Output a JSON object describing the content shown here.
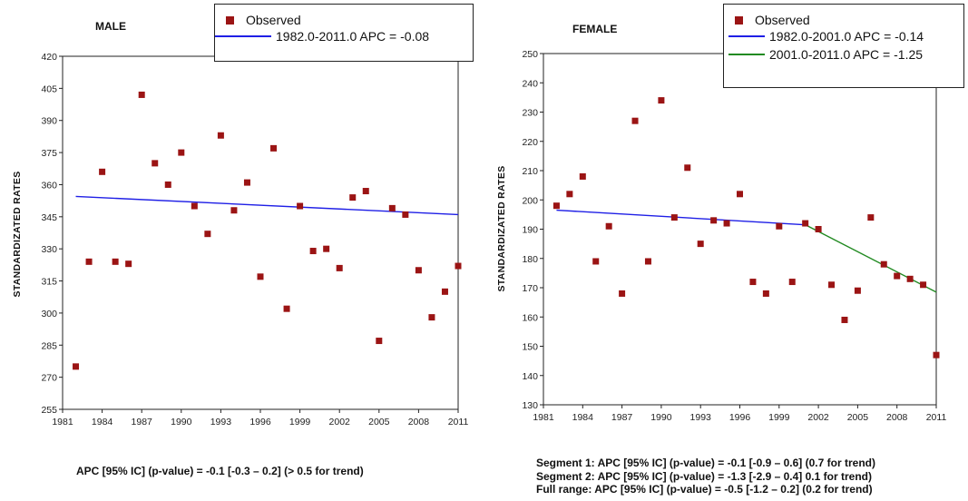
{
  "colors": {
    "observed": "#9B1414",
    "segment1": "#1F1FE6",
    "segment2": "#218A21",
    "axis": "#222222"
  },
  "charts": {
    "male": {
      "sex_title": "MALE",
      "ylabel": "STANDARDIZATED RATES",
      "legend": {
        "observed": "Observed",
        "seg1": "1982.0-2011.0 APC  = -0.08"
      },
      "note": [
        "APC [95% IC] (p-value) = -0.1 [-0.3 – 0.2] (> 0.5 for trend)"
      ]
    },
    "female": {
      "sex_title": "FEMALE",
      "ylabel": "STANDARDIZATED RATES",
      "legend": {
        "observed": "Observed",
        "seg1": "1982.0-2001.0 APC  = -0.14",
        "seg2": "2001.0-2011.0 APC  = -1.25"
      },
      "note": [
        "Segment 1: APC  [95% IC] (p-value) = -0.1 [-0.9 – 0.6] (0.7 for trend)",
        "Segment 2: APC  [95% IC] (p-value) = -1.3 [-2.9 – 0.4] 0.1 for trend)",
        "Full range:  APC  [95% IC] (p-value) = -0.5 [-1.2 – 0.2] (0.2 for trend)"
      ]
    }
  },
  "chart_data": [
    {
      "type": "scatter",
      "title": "MALE",
      "xlabel": "",
      "ylabel": "STANDARDIZATED RATES",
      "xlim": [
        1981,
        2011
      ],
      "ylim": [
        255,
        420
      ],
      "xticks": [
        1981,
        1984,
        1987,
        1990,
        1993,
        1996,
        1999,
        2002,
        2005,
        2008,
        2011
      ],
      "yticks": [
        255,
        270,
        285,
        300,
        315,
        330,
        345,
        360,
        375,
        390,
        405,
        420
      ],
      "legend_position": "top-right",
      "grid": false,
      "series": [
        {
          "name": "Observed",
          "kind": "points",
          "x": [
            1982,
            1983,
            1984,
            1985,
            1986,
            1987,
            1988,
            1989,
            1990,
            1991,
            1992,
            1993,
            1994,
            1995,
            1996,
            1997,
            1998,
            1999,
            2000,
            2001,
            2002,
            2003,
            2004,
            2005,
            2006,
            2007,
            2008,
            2009,
            2010,
            2011
          ],
          "y": [
            275,
            324,
            366,
            324,
            323,
            402,
            370,
            360,
            375,
            350,
            337,
            383,
            348,
            361,
            317,
            377,
            302,
            350,
            329,
            330,
            321,
            354,
            357,
            287,
            349,
            346,
            320,
            298,
            310,
            322
          ]
        },
        {
          "name": "1982.0-2011.0 APC  = -0.08",
          "kind": "line",
          "x": [
            1982,
            2011
          ],
          "y": [
            354.5,
            346
          ]
        }
      ]
    },
    {
      "type": "scatter",
      "title": "FEMALE",
      "xlabel": "",
      "ylabel": "STANDARDIZATED RATES",
      "xlim": [
        1981,
        2011
      ],
      "ylim": [
        130,
        250
      ],
      "xticks": [
        1981,
        1984,
        1987,
        1990,
        1993,
        1996,
        1999,
        2002,
        2005,
        2008,
        2011
      ],
      "yticks": [
        130,
        140,
        150,
        160,
        170,
        180,
        190,
        200,
        210,
        220,
        230,
        240,
        250
      ],
      "legend_position": "top-right",
      "grid": false,
      "series": [
        {
          "name": "Observed",
          "kind": "points",
          "x": [
            1982,
            1983,
            1984,
            1985,
            1986,
            1987,
            1988,
            1989,
            1990,
            1991,
            1992,
            1993,
            1994,
            1995,
            1996,
            1997,
            1998,
            1999,
            2000,
            2001,
            2002,
            2003,
            2004,
            2005,
            2006,
            2007,
            2008,
            2009,
            2010,
            2011
          ],
          "y": [
            198,
            202,
            208,
            179,
            191,
            168,
            227,
            179,
            234,
            194,
            211,
            185,
            193,
            192,
            202,
            172,
            168,
            191,
            172,
            192,
            190,
            171,
            159,
            169,
            194,
            178,
            174,
            173,
            171,
            147
          ]
        },
        {
          "name": "1982.0-2001.0 APC  = -0.14",
          "kind": "line",
          "x": [
            1982,
            2001
          ],
          "y": [
            196.5,
            191.5
          ]
        },
        {
          "name": "2001.0-2011.0 APC  = -1.25",
          "kind": "line",
          "x": [
            2001,
            2011
          ],
          "y": [
            191.5,
            168.5
          ]
        }
      ]
    }
  ]
}
